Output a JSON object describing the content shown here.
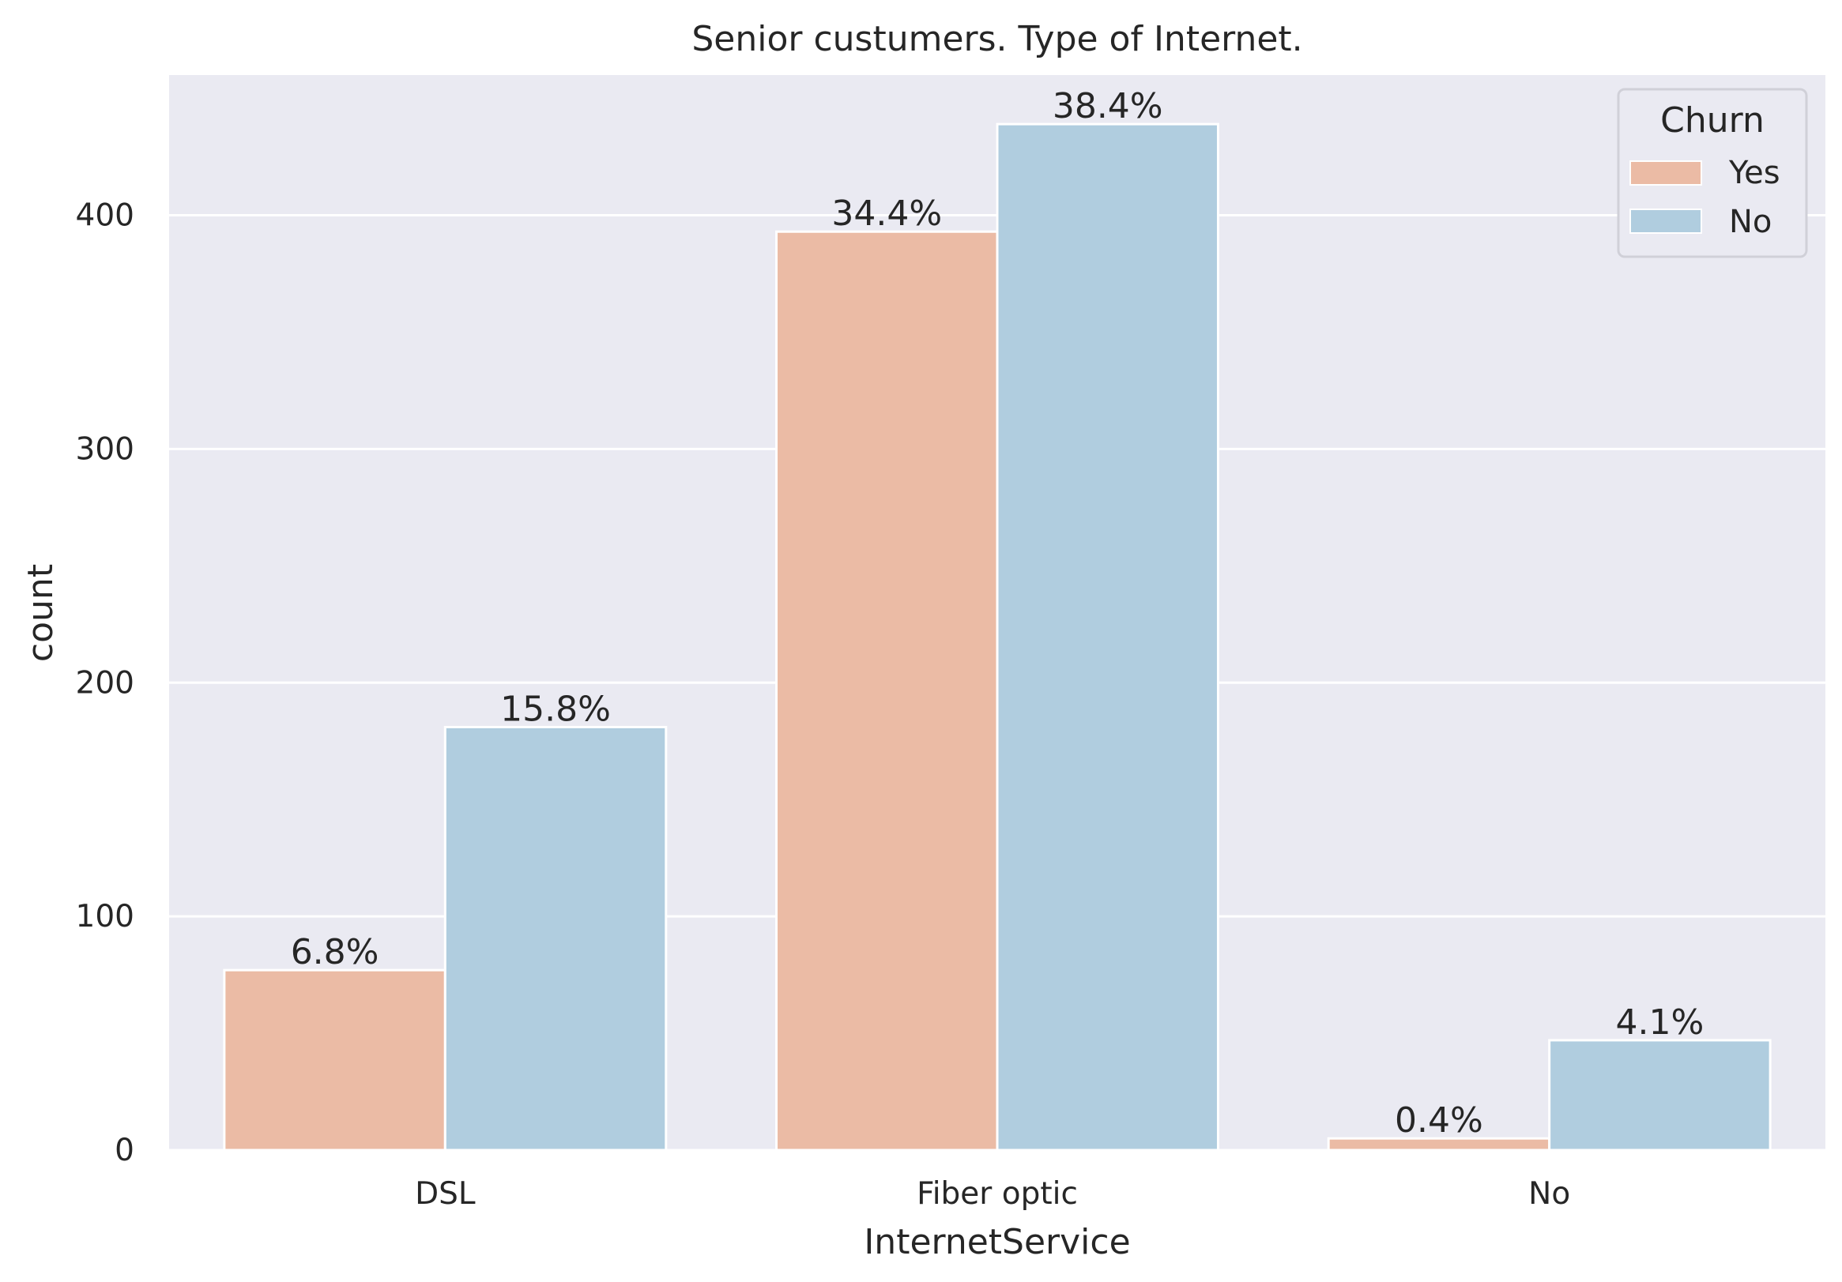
{
  "chart_data": {
    "type": "bar",
    "title": "Senior custumers. Type of Internet.",
    "xlabel": "InternetService",
    "ylabel": "count",
    "categories": [
      "DSL",
      "Fiber optic",
      "No"
    ],
    "series": [
      {
        "name": "Yes",
        "color": "#ebbba5",
        "values": [
          77,
          393,
          5
        ],
        "labels": [
          "6.8%",
          "34.4%",
          "0.4%"
        ]
      },
      {
        "name": "No",
        "color": "#b0cddf",
        "values": [
          181,
          439,
          47
        ],
        "labels": [
          "15.8%",
          "38.4%",
          "4.1%"
        ]
      }
    ],
    "ylim": [
      0,
      460
    ],
    "yticks": [
      0,
      100,
      200,
      300,
      400
    ],
    "grid": true,
    "legend": {
      "title": "Churn",
      "placement": "top-right"
    },
    "background_color": "#eaeaf2",
    "grid_color": "#ffffff"
  }
}
